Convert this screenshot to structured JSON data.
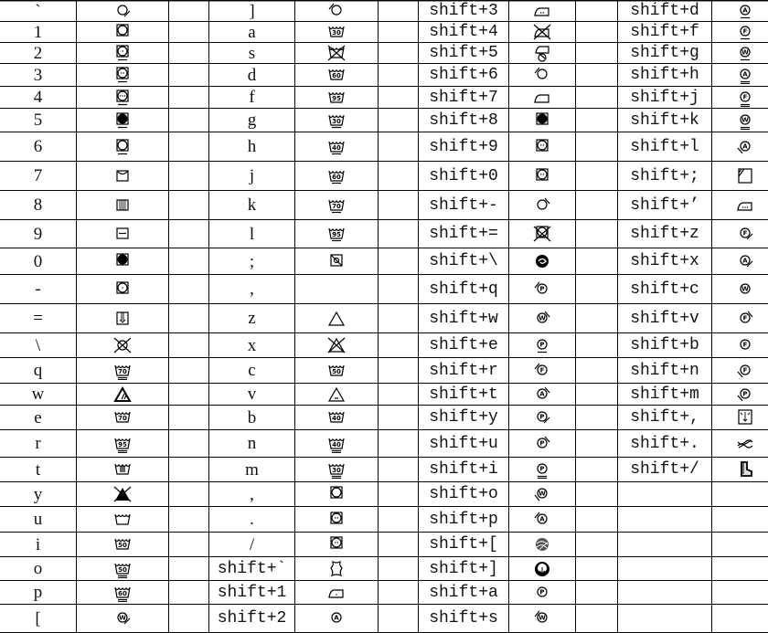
{
  "columns": [
    {
      "items": [
        {
          "key": "`",
          "icon": {
            "t": "circle",
            "slash": "br"
          }
        },
        {
          "key": "1",
          "icon": {
            "t": "tumble"
          }
        },
        {
          "key": "2",
          "icon": {
            "t": "tumble",
            "dots": 1,
            "under": 1
          }
        },
        {
          "key": "3",
          "icon": {
            "t": "tumble",
            "dots": 2,
            "under": 1
          }
        },
        {
          "key": "4",
          "icon": {
            "t": "tumble",
            "dots": 3,
            "under": 1
          }
        },
        {
          "key": "5",
          "icon": {
            "t": "tumble",
            "fill": true,
            "under": 1
          }
        },
        {
          "key": "6",
          "icon": {
            "t": "tumble",
            "under": 1
          }
        },
        {
          "key": "7",
          "icon": {
            "t": "line-dry"
          }
        },
        {
          "key": "8",
          "icon": {
            "t": "drip-dry"
          }
        },
        {
          "key": "9",
          "icon": {
            "t": "dry-flat"
          }
        },
        {
          "key": "0",
          "icon": {
            "t": "tumble",
            "fill": true
          }
        },
        {
          "key": "-",
          "icon": {
            "t": "tumble",
            "dots": 1
          }
        },
        {
          "key": "=",
          "icon": {
            "t": "shade-dry"
          }
        },
        {
          "key": "\\",
          "icon": {
            "t": "circle-cross"
          }
        },
        {
          "key": "q",
          "icon": {
            "t": "wash",
            "temp": "70",
            "under": 2
          }
        },
        {
          "key": "w",
          "icon": {
            "t": "triangle-lines"
          }
        },
        {
          "key": "e",
          "icon": {
            "t": "wash",
            "temp": "70"
          }
        },
        {
          "key": "r",
          "icon": {
            "t": "wash",
            "temp": "95",
            "under": 2
          }
        },
        {
          "key": "t",
          "icon": {
            "t": "hand-wash"
          }
        },
        {
          "key": "y",
          "icon": {
            "t": "triangle-filled-cross"
          }
        },
        {
          "key": "u",
          "icon": {
            "t": "wash"
          }
        },
        {
          "key": "i",
          "icon": {
            "t": "wash",
            "temp": "50"
          }
        },
        {
          "key": "o",
          "icon": {
            "t": "wash",
            "temp": "50",
            "under": 2
          }
        },
        {
          "key": "p",
          "icon": {
            "t": "wash",
            "temp": "60",
            "under": 2
          }
        },
        {
          "key": "[",
          "icon": {
            "t": "letter",
            "letter": "W",
            "slash": "br"
          }
        }
      ]
    },
    {
      "items": [
        {
          "key": "]",
          "icon": {
            "t": "circle",
            "slash": "tl"
          }
        },
        {
          "key": "a",
          "icon": {
            "t": "wash",
            "temp": "30"
          }
        },
        {
          "key": "s",
          "icon": {
            "t": "wash-cross"
          }
        },
        {
          "key": "d",
          "icon": {
            "t": "wash",
            "temp": "60"
          }
        },
        {
          "key": "f",
          "icon": {
            "t": "wash",
            "temp": "95"
          }
        },
        {
          "key": "g",
          "icon": {
            "t": "wash",
            "temp": "30",
            "under": 1
          }
        },
        {
          "key": "h",
          "icon": {
            "t": "wash",
            "temp": "40",
            "under": 1
          }
        },
        {
          "key": "j",
          "icon": {
            "t": "wash",
            "temp": "60",
            "under": 1
          }
        },
        {
          "key": "k",
          "icon": {
            "t": "wash",
            "temp": "70",
            "under": 1
          }
        },
        {
          "key": "l",
          "icon": {
            "t": "wash",
            "temp": "95",
            "under": 1
          }
        },
        {
          "key": ";",
          "icon": {
            "t": "sun-cross"
          }
        },
        {
          "key": ",",
          "icon": null
        },
        {
          "key": "z",
          "icon": {
            "t": "triangle"
          }
        },
        {
          "key": "x",
          "icon": {
            "t": "triangle-cross"
          }
        },
        {
          "key": "c",
          "icon": {
            "t": "wash",
            "temp": "50"
          }
        },
        {
          "key": "v",
          "icon": {
            "t": "triangle-cl"
          }
        },
        {
          "key": "b",
          "icon": {
            "t": "wash",
            "temp": "40"
          }
        },
        {
          "key": "n",
          "icon": {
            "t": "wash",
            "temp": "40",
            "under": 2
          }
        },
        {
          "key": "m",
          "icon": {
            "t": "wash",
            "temp": "30",
            "under": 2
          }
        },
        {
          "key": ",",
          "icon": {
            "t": "tumble"
          }
        },
        {
          "key": ".",
          "icon": {
            "t": "tumble",
            "dots": 2
          }
        },
        {
          "key": "/",
          "icon": {
            "t": "tumble",
            "dots": 2
          }
        },
        {
          "key": "shift+`",
          "icon": {
            "t": "leather"
          }
        },
        {
          "key": "shift+1",
          "icon": {
            "t": "iron",
            "dots": 1
          }
        },
        {
          "key": "shift+2",
          "icon": {
            "t": "letter",
            "letter": "A"
          }
        }
      ]
    },
    {
      "items": [
        {
          "key": "shift+3",
          "icon": {
            "t": "iron",
            "dots": 2
          }
        },
        {
          "key": "shift+4",
          "icon": {
            "t": "iron",
            "cross": true
          }
        },
        {
          "key": "shift+5",
          "icon": {
            "t": "steam-cross"
          }
        },
        {
          "key": "shift+6",
          "icon": {
            "t": "circle",
            "slash": "tl"
          }
        },
        {
          "key": "shift+7",
          "icon": {
            "t": "iron"
          }
        },
        {
          "key": "shift+8",
          "icon": {
            "t": "tumble",
            "fill": true
          }
        },
        {
          "key": "shift+9",
          "icon": {
            "t": "tumble",
            "dots": 2
          }
        },
        {
          "key": "shift+0",
          "icon": {
            "t": "tumble",
            "dots": 2
          }
        },
        {
          "key": "shift+-",
          "icon": {
            "t": "circle",
            "slash": "tr"
          }
        },
        {
          "key": "shift+=",
          "icon": {
            "t": "tumble-cross"
          }
        },
        {
          "key": "shift+\\",
          "icon": {
            "t": "swirl"
          }
        },
        {
          "key": "shift+q",
          "icon": {
            "t": "letter",
            "letter": "P",
            "slash": "tl"
          }
        },
        {
          "key": "shift+w",
          "icon": {
            "t": "letter",
            "letter": "W",
            "slash": "tr"
          }
        },
        {
          "key": "shift+e",
          "icon": {
            "t": "letter",
            "letter": "P",
            "under": 1
          }
        },
        {
          "key": "shift+r",
          "icon": {
            "t": "letter",
            "letter": "F",
            "slash": "tl"
          }
        },
        {
          "key": "shift+t",
          "icon": {
            "t": "letter",
            "letter": "A",
            "slash": "tr"
          }
        },
        {
          "key": "shift+y",
          "icon": {
            "t": "letter",
            "letter": "P",
            "slash": "br"
          }
        },
        {
          "key": "shift+u",
          "icon": {
            "t": "letter",
            "letter": "P",
            "slash": "tr"
          }
        },
        {
          "key": "shift+i",
          "icon": {
            "t": "letter",
            "letter": "P",
            "under": 2
          }
        },
        {
          "key": "shift+o",
          "icon": {
            "t": "letter",
            "letter": "W",
            "slash": "bl"
          }
        },
        {
          "key": "shift+p",
          "icon": {
            "t": "letter",
            "letter": "A",
            "slash": "tl"
          }
        },
        {
          "key": "shift+[",
          "icon": {
            "t": "wool"
          }
        },
        {
          "key": "shift+]",
          "icon": {
            "t": "cotton"
          }
        },
        {
          "key": "shift+a",
          "icon": {
            "t": "letter",
            "letter": "P"
          }
        },
        {
          "key": "shift+s",
          "icon": {
            "t": "letter",
            "letter": "W",
            "slash": "tl"
          }
        }
      ]
    },
    {
      "items": [
        {
          "key": "shift+d",
          "icon": {
            "t": "letter",
            "letter": "A",
            "under": 1
          }
        },
        {
          "key": "shift+f",
          "icon": {
            "t": "letter",
            "letter": "F",
            "under": 1
          }
        },
        {
          "key": "shift+g",
          "icon": {
            "t": "letter",
            "letter": "W",
            "under": 1
          }
        },
        {
          "key": "shift+h",
          "icon": {
            "t": "letter",
            "letter": "A",
            "under": 2
          }
        },
        {
          "key": "shift+j",
          "icon": {
            "t": "letter",
            "letter": "F",
            "under": 2
          }
        },
        {
          "key": "shift+k",
          "icon": {
            "t": "letter",
            "letter": "W",
            "under": 2
          }
        },
        {
          "key": "shift+l",
          "icon": {
            "t": "letter",
            "letter": "A",
            "slash": "bl"
          }
        },
        {
          "key": "shift+;",
          "icon": {
            "t": "square-diag"
          }
        },
        {
          "key": "shift+’",
          "icon": {
            "t": "iron",
            "dots": 3
          }
        },
        {
          "key": "shift+z",
          "icon": {
            "t": "letter",
            "letter": "F",
            "slash": "br"
          }
        },
        {
          "key": "shift+x",
          "icon": {
            "t": "letter",
            "letter": "A",
            "slash": "br"
          }
        },
        {
          "key": "shift+c",
          "icon": {
            "t": "letter",
            "letter": "W"
          }
        },
        {
          "key": "shift+v",
          "icon": {
            "t": "letter",
            "letter": "F",
            "slash": "tr"
          }
        },
        {
          "key": "shift+b",
          "icon": {
            "t": "letter",
            "letter": "F"
          }
        },
        {
          "key": "shift+n",
          "icon": {
            "t": "letter",
            "letter": "F",
            "slash": "bl"
          }
        },
        {
          "key": "shift+m",
          "icon": {
            "t": "letter",
            "letter": "P",
            "slash": "bl"
          }
        },
        {
          "key": "shift+,",
          "icon": {
            "t": "square-arrows"
          }
        },
        {
          "key": "shift+.",
          "icon": {
            "t": "braid"
          }
        },
        {
          "key": "shift+/",
          "icon": {
            "t": "boot"
          }
        }
      ]
    }
  ]
}
